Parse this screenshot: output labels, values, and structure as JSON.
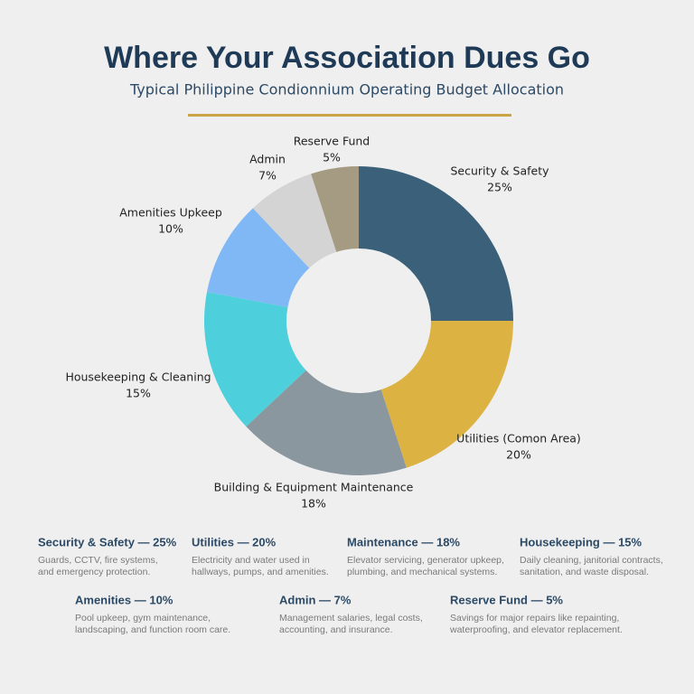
{
  "chart_data": {
    "type": "donut",
    "title": "Where Your Association Dues Go",
    "subtitle": "Typical Philippine Condionnium Operating Budget Allocation",
    "categories": [
      "Security & Safety",
      "Utilities (Comon Area)",
      "Building & Equipment Maintenance",
      "Housekeeping & Cleaning",
      "Amenities Upkeep",
      "Admin",
      "Reserve Fund"
    ],
    "values": [
      25,
      20,
      18,
      15,
      10,
      7,
      5
    ],
    "value_labels": [
      "25%",
      "20%",
      "18%",
      "15%",
      "10%",
      "7%",
      "5%"
    ],
    "colors": [
      "#3b6079",
      "#dcb243",
      "#8a979e",
      "#4dd0dc",
      "#7fb8f5",
      "#d4d4d4",
      "#a59a82"
    ]
  },
  "legend": {
    "items": [
      {
        "heading": "Security & Safety — 25%",
        "lines": [
          "Guards, CCTV, fire systems,",
          "and emergency protection."
        ]
      },
      {
        "heading": "Utilities — 20%",
        "lines": [
          "Electricity and water used in",
          "hallways, pumps, and amenities."
        ]
      },
      {
        "heading": "Maintenance — 18%",
        "lines": [
          "Elevator servicing, generator upkeep,",
          "plumbing, and mechanical systems."
        ]
      },
      {
        "heading": "Housekeeping — 15%",
        "lines": [
          "Daily cleaning, janitorial contracts,",
          "sanitation, and waste disposal."
        ]
      },
      {
        "heading": "Amenities — 10%",
        "lines": [
          "Pool upkeep, gym maintenance,",
          "landscaping, and function room care."
        ]
      },
      {
        "heading": "Admin — 7%",
        "lines": [
          "Management salaries, legal costs,",
          "accounting, and insurance."
        ]
      },
      {
        "heading": "Reserve Fund — 5%",
        "lines": [
          "Savings for major repairs like repainting,",
          "waterproofing, and elevator replacement."
        ]
      }
    ]
  }
}
